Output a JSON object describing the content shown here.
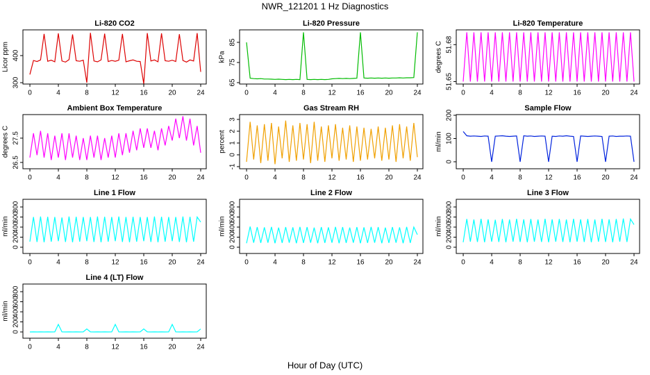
{
  "title": "NWR_121201 1 Hz Diagnostics",
  "xlabel": "Hour of Day (UTC)",
  "chart_data": [
    {
      "type": "line",
      "title": "Li-820 CO2",
      "ylabel": "Licor ppm",
      "color": "#dd0000",
      "x": [
        0,
        0.5,
        1,
        1.5,
        2,
        2.5,
        3,
        3.5,
        4,
        4.5,
        5,
        5.5,
        6,
        6.5,
        7,
        7.5,
        8,
        8.5,
        9,
        9.5,
        10,
        10.5,
        11,
        11.5,
        12,
        12.5,
        13,
        13.5,
        14,
        14.5,
        15,
        15.5,
        16,
        16.5,
        17,
        17.5,
        18,
        18.5,
        19,
        19.5,
        20,
        20.5,
        21,
        21.5,
        22,
        22.5,
        23,
        23.5,
        24
      ],
      "values": [
        330,
        382,
        378,
        384,
        480,
        379,
        383,
        377,
        482,
        380,
        376,
        385,
        478,
        381,
        379,
        383,
        300,
        484,
        380,
        377,
        384,
        481,
        378,
        382,
        379,
        383,
        480,
        377,
        381,
        384,
        379,
        378,
        296,
        483,
        380,
        384,
        377,
        482,
        381,
        379,
        383,
        378,
        479,
        382,
        376,
        384,
        380,
        483,
        340
      ],
      "xlim": [
        -0.98,
        24.78
      ],
      "xticks": [
        0,
        4,
        8,
        12,
        16,
        20,
        24
      ],
      "ylim": [
        295,
        495
      ],
      "yticks": [
        300,
        400
      ]
    },
    {
      "type": "line",
      "title": "Li-820 Pressure",
      "ylabel": "kPa",
      "color": "#00bb00",
      "x": [
        0,
        0.5,
        1,
        1.5,
        2,
        2.5,
        3,
        3.5,
        4,
        4.5,
        5,
        5.5,
        6,
        6.5,
        7,
        7.5,
        8,
        8.5,
        9,
        9.5,
        10,
        10.5,
        11,
        11.5,
        12,
        12.5,
        13,
        13.5,
        14,
        14.5,
        15,
        15.5,
        16,
        16.5,
        17,
        17.5,
        18,
        18.5,
        19,
        19.5,
        20,
        20.5,
        21,
        21.5,
        22,
        22.5,
        23,
        23.5,
        24
      ],
      "values": [
        85,
        67.2,
        67,
        66.9,
        67,
        66.8,
        66.8,
        66.7,
        66.6,
        66.7,
        66.6,
        66.5,
        66.6,
        66.5,
        66.6,
        66.5,
        90,
        66.6,
        66.5,
        66.6,
        66.5,
        66.6,
        66.5,
        66.6,
        66.9,
        67,
        67.1,
        67,
        67.1,
        67,
        67.1,
        67.2,
        90,
        67.3,
        67.2,
        67.3,
        67.2,
        67.3,
        67.2,
        67.3,
        67.2,
        67.3,
        67.3,
        67.4,
        67.3,
        67.4,
        67.4,
        67.5,
        90
      ],
      "xlim": [
        -0.98,
        24.78
      ],
      "xticks": [
        0,
        4,
        8,
        12,
        16,
        20,
        24
      ],
      "ylim": [
        64.3,
        91.2
      ],
      "yticks": [
        65,
        75,
        85
      ]
    },
    {
      "type": "line",
      "title": "Li-820 Temperature",
      "ylabel": "degrees C",
      "color": "#ff00ff",
      "x": [
        0,
        0.5,
        1,
        1.5,
        2,
        2.5,
        3,
        3.5,
        4,
        4.5,
        5,
        5.5,
        6,
        6.5,
        7,
        7.5,
        8,
        8.5,
        9,
        9.5,
        10,
        10.5,
        11,
        11.5,
        12,
        12.5,
        13,
        13.5,
        14,
        14.5,
        15,
        15.5,
        16,
        16.5,
        17,
        17.5,
        18,
        18.5,
        19,
        19.5,
        20,
        20.5,
        21,
        21.5,
        22,
        22.5,
        23,
        23.5,
        24
      ],
      "values": [
        51.65,
        51.69,
        51.65,
        51.69,
        51.65,
        51.69,
        51.65,
        51.69,
        51.65,
        51.69,
        51.65,
        51.69,
        51.65,
        51.69,
        51.65,
        51.69,
        51.65,
        51.69,
        51.65,
        51.69,
        51.65,
        51.69,
        51.65,
        51.69,
        51.65,
        51.69,
        51.65,
        51.69,
        51.65,
        51.69,
        51.65,
        51.69,
        51.65,
        51.69,
        51.65,
        51.69,
        51.65,
        51.69,
        51.65,
        51.69,
        51.65,
        51.69,
        51.65,
        51.69,
        51.65,
        51.69,
        51.65,
        51.69,
        51.65
      ],
      "xlim": [
        -0.98,
        24.78
      ],
      "xticks": [
        0,
        4,
        8,
        12,
        16,
        20,
        24
      ],
      "ylim": [
        51.648,
        51.692
      ],
      "yticks": [
        51.65,
        51.68
      ]
    },
    {
      "type": "line",
      "title": "Ambient Box Temperature",
      "ylabel": "degrees C",
      "color": "#ff00ff",
      "x": [
        0,
        0.5,
        1,
        1.5,
        2,
        2.5,
        3,
        3.5,
        4,
        4.5,
        5,
        5.5,
        6,
        6.5,
        7,
        7.5,
        8,
        8.5,
        9,
        9.5,
        10,
        10.5,
        11,
        11.5,
        12,
        12.5,
        13,
        13.5,
        14,
        14.5,
        15,
        15.5,
        16,
        16.5,
        17,
        17.5,
        18,
        18.5,
        19,
        19.5,
        20,
        20.5,
        21,
        21.5,
        22,
        22.5,
        23,
        23.5,
        24
      ],
      "values": [
        26.7,
        27.7,
        26.8,
        27.8,
        26.7,
        27.7,
        26.6,
        27.6,
        26.7,
        27.7,
        26.6,
        27.7,
        26.7,
        27.6,
        26.6,
        27.5,
        26.6,
        27.6,
        26.7,
        27.6,
        26.6,
        27.5,
        26.7,
        27.6,
        26.7,
        27.7,
        26.8,
        27.7,
        26.9,
        27.8,
        27.0,
        27.9,
        27.1,
        27.9,
        27.1,
        27.8,
        27.0,
        27.9,
        27.2,
        28.0,
        27.4,
        28.3,
        27.5,
        28.4,
        27.4,
        28.3,
        27.2,
        28.0,
        26.9
      ],
      "xlim": [
        -0.98,
        24.78
      ],
      "xticks": [
        0,
        4,
        8,
        12,
        16,
        20,
        24
      ],
      "ylim": [
        26.24,
        28.47
      ],
      "yticks": [
        26.5,
        27.5
      ]
    },
    {
      "type": "line",
      "title": "Gas Stream RH",
      "ylabel": "percent",
      "color": "#f0a000",
      "x": [
        0,
        0.5,
        1,
        1.5,
        2,
        2.5,
        3,
        3.5,
        4,
        4.5,
        5,
        5.5,
        6,
        6.5,
        7,
        7.5,
        8,
        8.5,
        9,
        9.5,
        10,
        10.5,
        11,
        11.5,
        12,
        12.5,
        13,
        13.5,
        14,
        14.5,
        15,
        15.5,
        16,
        16.5,
        17,
        17.5,
        18,
        18.5,
        19,
        19.5,
        20,
        20.5,
        21,
        21.5,
        22,
        22.5,
        23,
        23.5,
        24
      ],
      "values": [
        -0.6,
        2.8,
        -0.4,
        2.5,
        -0.7,
        2.6,
        -0.5,
        2.7,
        -0.8,
        2.4,
        -0.3,
        2.9,
        -0.6,
        2.5,
        -0.5,
        2.7,
        -0.4,
        2.6,
        -0.7,
        2.8,
        -0.5,
        2.4,
        -0.6,
        2.5,
        -0.3,
        2.6,
        -0.5,
        2.3,
        -0.4,
        2.5,
        -0.6,
        2.4,
        -0.5,
        2.3,
        -0.4,
        2.2,
        -0.3,
        2.4,
        -0.5,
        2.3,
        -0.4,
        2.5,
        -0.6,
        2.6,
        -0.3,
        2.4,
        -0.5,
        2.7,
        -0.2
      ],
      "xlim": [
        -0.98,
        24.78
      ],
      "xticks": [
        0,
        4,
        8,
        12,
        16,
        20,
        24
      ],
      "ylim": [
        -1.18,
        3.41
      ],
      "yticks": [
        -1,
        0,
        1,
        2,
        3
      ]
    },
    {
      "type": "line",
      "title": "Sample Flow",
      "ylabel": "ml/min",
      "color": "#0022dd",
      "x": [
        0,
        0.5,
        1,
        1.5,
        2,
        2.5,
        3,
        3.5,
        4,
        4.5,
        5,
        5.5,
        6,
        6.5,
        7,
        7.5,
        8,
        8.5,
        9,
        9.5,
        10,
        10.5,
        11,
        11.5,
        12,
        12.5,
        13,
        13.5,
        14,
        14.5,
        15,
        15.5,
        16,
        16.5,
        17,
        17.5,
        18,
        18.5,
        19,
        19.5,
        20,
        20.5,
        21,
        21.5,
        22,
        22.5,
        23,
        23.5,
        24
      ],
      "values": [
        130,
        112,
        110,
        111,
        110,
        109,
        111,
        110,
        0,
        110,
        111,
        112,
        110,
        109,
        110,
        111,
        0,
        112,
        110,
        111,
        109,
        110,
        111,
        110,
        0,
        110,
        109,
        111,
        110,
        112,
        110,
        109,
        0,
        111,
        110,
        109,
        110,
        111,
        110,
        109,
        0,
        110,
        111,
        109,
        110,
        110,
        111,
        110,
        0
      ],
      "xlim": [
        -0.98,
        24.78
      ],
      "xticks": [
        0,
        4,
        8,
        12,
        16,
        20,
        24
      ],
      "ylim": [
        -30,
        203
      ],
      "yticks": [
        0,
        100,
        200
      ]
    },
    {
      "type": "line",
      "title": "Line 1 Flow",
      "ylabel": "ml/min",
      "color": "#00ffff",
      "x": [
        0,
        0.5,
        1,
        1.5,
        2,
        2.5,
        3,
        3.5,
        4,
        4.5,
        5,
        5.5,
        6,
        6.5,
        7,
        7.5,
        8,
        8.5,
        9,
        9.5,
        10,
        10.5,
        11,
        11.5,
        12,
        12.5,
        13,
        13.5,
        14,
        14.5,
        15,
        15.5,
        16,
        16.5,
        17,
        17.5,
        18,
        18.5,
        19,
        19.5,
        20,
        20.5,
        21,
        21.5,
        22,
        22.5,
        23,
        23.5,
        24
      ],
      "values": [
        110,
        600,
        105,
        610,
        100,
        605,
        110,
        600,
        120,
        590,
        105,
        610,
        100,
        605,
        110,
        600,
        120,
        600,
        105,
        610,
        100,
        605,
        110,
        600,
        120,
        610,
        105,
        600,
        100,
        605,
        110,
        600,
        120,
        600,
        105,
        610,
        100,
        605,
        110,
        600,
        120,
        600,
        105,
        610,
        100,
        605,
        110,
        600,
        500
      ],
      "xlim": [
        -0.98,
        24.78
      ],
      "xticks": [
        0,
        4,
        8,
        12,
        16,
        20,
        24
      ],
      "ylim": [
        -124,
        952
      ],
      "yticks": [
        0,
        200,
        400,
        600,
        800
      ]
    },
    {
      "type": "line",
      "title": "Line 2 Flow",
      "ylabel": "ml/min",
      "color": "#00ffff",
      "x": [
        0,
        0.5,
        1,
        1.5,
        2,
        2.5,
        3,
        3.5,
        4,
        4.5,
        5,
        5.5,
        6,
        6.5,
        7,
        7.5,
        8,
        8.5,
        9,
        9.5,
        10,
        10.5,
        11,
        11.5,
        12,
        12.5,
        13,
        13.5,
        14,
        14.5,
        15,
        15.5,
        16,
        16.5,
        17,
        17.5,
        18,
        18.5,
        19,
        19.5,
        20,
        20.5,
        21,
        21.5,
        22,
        22.5,
        23,
        23.5,
        24
      ],
      "values": [
        80,
        410,
        90,
        400,
        85,
        395,
        90,
        405,
        80,
        390,
        85,
        400,
        90,
        395,
        80,
        405,
        85,
        400,
        90,
        390,
        80,
        400,
        85,
        395,
        90,
        405,
        80,
        400,
        85,
        390,
        90,
        400,
        80,
        395,
        85,
        405,
        90,
        400,
        80,
        390,
        85,
        400,
        90,
        395,
        80,
        405,
        85,
        400,
        250
      ],
      "xlim": [
        -0.98,
        24.78
      ],
      "xticks": [
        0,
        4,
        8,
        12,
        16,
        20,
        24
      ],
      "ylim": [
        -124,
        952
      ],
      "yticks": [
        0,
        200,
        400,
        600,
        800
      ]
    },
    {
      "type": "line",
      "title": "Line 3 Flow",
      "ylabel": "ml/min",
      "color": "#00ffff",
      "x": [
        0,
        0.5,
        1,
        1.5,
        2,
        2.5,
        3,
        3.5,
        4,
        4.5,
        5,
        5.5,
        6,
        6.5,
        7,
        7.5,
        8,
        8.5,
        9,
        9.5,
        10,
        10.5,
        11,
        11.5,
        12,
        12.5,
        13,
        13.5,
        14,
        14.5,
        15,
        15.5,
        16,
        16.5,
        17,
        17.5,
        18,
        18.5,
        19,
        19.5,
        20,
        20.5,
        21,
        21.5,
        22,
        22.5,
        23,
        23.5,
        24
      ],
      "values": [
        100,
        560,
        110,
        550,
        105,
        565,
        100,
        555,
        110,
        545,
        105,
        560,
        100,
        550,
        110,
        565,
        105,
        555,
        100,
        560,
        110,
        550,
        105,
        565,
        100,
        555,
        110,
        560,
        105,
        550,
        100,
        565,
        110,
        555,
        105,
        560,
        100,
        550,
        110,
        565,
        105,
        555,
        100,
        560,
        110,
        570,
        105,
        560,
        450
      ],
      "xlim": [
        -0.98,
        24.78
      ],
      "xticks": [
        0,
        4,
        8,
        12,
        16,
        20,
        24
      ],
      "ylim": [
        -124,
        952
      ],
      "yticks": [
        0,
        200,
        400,
        600,
        800
      ]
    },
    {
      "type": "line",
      "title": "Line 4 (LT) Flow",
      "ylabel": "ml/min",
      "color": "#00ffff",
      "x": [
        0,
        0.5,
        1,
        1.5,
        2,
        2.5,
        3,
        3.5,
        4,
        4.5,
        5,
        5.5,
        6,
        6.5,
        7,
        7.5,
        8,
        8.5,
        9,
        9.5,
        10,
        10.5,
        11,
        11.5,
        12,
        12.5,
        13,
        13.5,
        14,
        14.5,
        15,
        15.5,
        16,
        16.5,
        17,
        17.5,
        18,
        18.5,
        19,
        19.5,
        20,
        20.5,
        21,
        21.5,
        22,
        22.5,
        23,
        23.5,
        24
      ],
      "values": [
        0,
        2,
        0,
        1,
        0,
        2,
        0,
        1,
        150,
        2,
        0,
        1,
        0,
        2,
        0,
        1,
        60,
        2,
        0,
        1,
        0,
        2,
        0,
        1,
        150,
        2,
        0,
        1,
        0,
        2,
        0,
        1,
        60,
        2,
        0,
        1,
        0,
        2,
        0,
        1,
        150,
        2,
        0,
        1,
        0,
        2,
        0,
        1,
        60
      ],
      "xlim": [
        -0.98,
        24.78
      ],
      "xticks": [
        0,
        4,
        8,
        12,
        16,
        20,
        24
      ],
      "ylim": [
        -124,
        952
      ],
      "yticks": [
        0,
        200,
        400,
        600,
        800
      ]
    }
  ]
}
